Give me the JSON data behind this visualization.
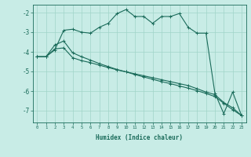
{
  "xlabel": "Humidex (Indice chaleur)",
  "bg_color": "#c8ece6",
  "line_color": "#1a6b5a",
  "grid_color": "#a0d4c8",
  "xlim": [
    -0.5,
    23.5
  ],
  "ylim": [
    -7.6,
    -1.6
  ],
  "yticks": [
    -7,
    -6,
    -5,
    -4,
    -3,
    -2
  ],
  "xticks": [
    0,
    1,
    2,
    3,
    4,
    5,
    6,
    7,
    8,
    9,
    10,
    11,
    12,
    13,
    14,
    15,
    16,
    17,
    18,
    19,
    20,
    21,
    22,
    23
  ],
  "line1_x": [
    0,
    1,
    2,
    3,
    4,
    5,
    6,
    7,
    8,
    9,
    10,
    11,
    12,
    13,
    14,
    15,
    16,
    17,
    18,
    19,
    20,
    21,
    22,
    23
  ],
  "line1_y": [
    -4.25,
    -4.25,
    -3.9,
    -2.9,
    -2.85,
    -3.0,
    -3.05,
    -2.75,
    -2.55,
    -2.05,
    -1.85,
    -2.2,
    -2.2,
    -2.55,
    -2.2,
    -2.2,
    -2.05,
    -2.75,
    -3.05,
    -3.05,
    -6.1,
    -7.15,
    -6.05,
    -7.25
  ],
  "line2_x": [
    0,
    1,
    2,
    3,
    4,
    5,
    6,
    7,
    8,
    9,
    10,
    11,
    12,
    13,
    14,
    15,
    16,
    17,
    18,
    19,
    20,
    21,
    22,
    23
  ],
  "line2_y": [
    -4.25,
    -4.25,
    -3.85,
    -3.8,
    -4.3,
    -4.45,
    -4.55,
    -4.68,
    -4.8,
    -4.92,
    -5.02,
    -5.12,
    -5.22,
    -5.32,
    -5.42,
    -5.52,
    -5.62,
    -5.72,
    -5.88,
    -6.05,
    -6.18,
    -6.58,
    -6.85,
    -7.25
  ],
  "line3_x": [
    0,
    1,
    2,
    3,
    4,
    5,
    6,
    7,
    8,
    9,
    10,
    11,
    12,
    13,
    14,
    15,
    16,
    17,
    18,
    19,
    20,
    21,
    22,
    23
  ],
  "line3_y": [
    -4.25,
    -4.25,
    -3.65,
    -3.45,
    -4.05,
    -4.25,
    -4.42,
    -4.6,
    -4.75,
    -4.9,
    -5.02,
    -5.16,
    -5.28,
    -5.4,
    -5.52,
    -5.62,
    -5.74,
    -5.85,
    -5.98,
    -6.12,
    -6.28,
    -6.62,
    -6.95,
    -7.25
  ]
}
